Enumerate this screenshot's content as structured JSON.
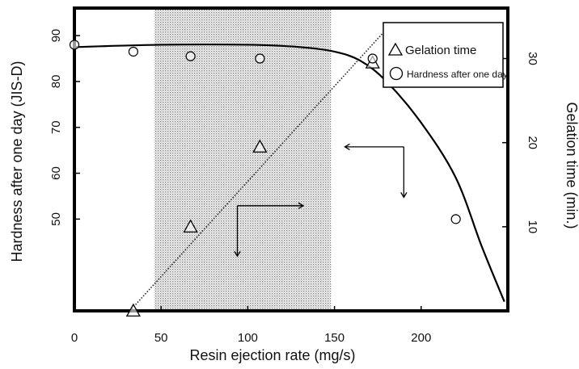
{
  "chart_data": {
    "type": "scatter",
    "xlabel": "Resin ejection rate (mg/s)",
    "ylabel_left": "Hardness after one day (JIS-D)",
    "ylabel_right": "Gelation time (min.)",
    "x_ticks": [
      0,
      50,
      100,
      150,
      200
    ],
    "y_left_ticks": [
      50,
      60,
      70,
      80,
      90
    ],
    "y_right_ticks": [
      10,
      20,
      30
    ],
    "xlim": [
      0,
      250
    ],
    "ylim_left": [
      30,
      96
    ],
    "ylim_right": [
      0,
      36
    ],
    "shaded_region": [
      46,
      148
    ],
    "series": [
      {
        "name": "Gelation time",
        "marker": "triangle",
        "axis": "right",
        "points": [
          [
            34,
            0
          ],
          [
            67,
            10
          ],
          [
            107,
            19.5
          ],
          [
            172,
            29.5
          ]
        ],
        "trend_line": [
          [
            32,
            0
          ],
          [
            180,
            33.5
          ]
        ]
      },
      {
        "name": "Hardness after one day",
        "marker": "circle",
        "axis": "left",
        "points": [
          [
            0,
            88
          ],
          [
            34,
            86.5
          ],
          [
            67,
            85.5
          ],
          [
            107,
            85
          ],
          [
            172,
            85
          ],
          [
            220,
            50
          ]
        ],
        "curve": [
          [
            0,
            87.5
          ],
          [
            50,
            88
          ],
          [
            100,
            88
          ],
          [
            130,
            87.5
          ],
          [
            150,
            86.5
          ],
          [
            165,
            84.5
          ],
          [
            180,
            80
          ],
          [
            200,
            71
          ],
          [
            220,
            59
          ],
          [
            235,
            44
          ],
          [
            248,
            32
          ]
        ]
      }
    ],
    "annotations": [
      {
        "type": "arrow-left-down",
        "start": [
          190,
          19.5
        ],
        "corner_x": 190,
        "end": [
          156,
          19.5
        ],
        "down_to": 13.5
      },
      {
        "type": "arrow-down-right",
        "start": [
          94,
          12.5
        ],
        "corner_x": 94,
        "end": [
          132,
          12.5
        ],
        "down_to": 6.5
      }
    ],
    "legend_position": "top-right"
  }
}
